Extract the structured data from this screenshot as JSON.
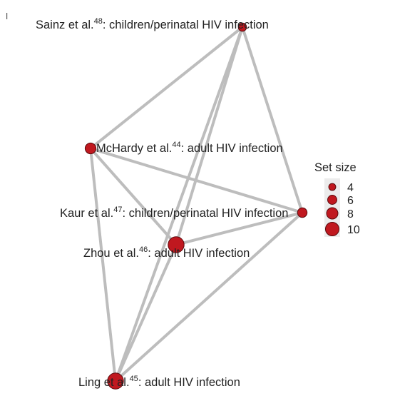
{
  "nodes": [
    {
      "id": "sainz",
      "author": "Sainz et al.",
      "ref": "48",
      "desc": ": children/perinatal HIV infection",
      "size": 4
    },
    {
      "id": "mchardy",
      "author": "McHardy et al.",
      "ref": "44",
      "desc": ": adult HIV infection",
      "size": 6
    },
    {
      "id": "kaur",
      "author": "Kaur et al.",
      "ref": "47",
      "desc": ": children/perinatal HIV infection",
      "size": 5
    },
    {
      "id": "zhou",
      "author": "Zhou et al.",
      "ref": "46",
      "desc": ": adult HIV infection",
      "size": 10
    },
    {
      "id": "ling",
      "author": "Ling et al.",
      "ref": "45",
      "desc": ": adult HIV infection",
      "size": 10
    }
  ],
  "edges": [
    [
      "sainz",
      "mchardy"
    ],
    [
      "sainz",
      "zhou"
    ],
    [
      "sainz",
      "kaur"
    ],
    [
      "sainz",
      "ling"
    ],
    [
      "mchardy",
      "kaur"
    ],
    [
      "mchardy",
      "zhou"
    ],
    [
      "mchardy",
      "ling"
    ],
    [
      "kaur",
      "zhou"
    ],
    [
      "kaur",
      "ling"
    ],
    [
      "zhou",
      "ling"
    ]
  ],
  "legend": {
    "title": "Set size",
    "items": [
      {
        "label": "4",
        "size": 4
      },
      {
        "label": "6",
        "size": 6
      },
      {
        "label": "8",
        "size": 8
      },
      {
        "label": "10",
        "size": 10
      }
    ]
  },
  "colors": {
    "node": "#c0181f",
    "edge": "#bdbdbd"
  }
}
